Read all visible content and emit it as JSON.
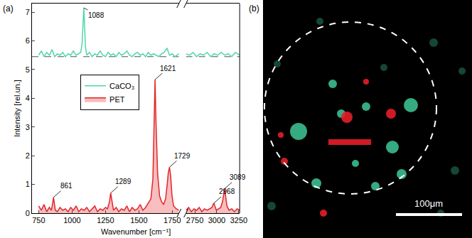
{
  "chart_data": {
    "type": "line",
    "x_label": "Wavenumber [cm⁻¹]",
    "y_label": "Intensity [rel.un.]",
    "xlim": [
      [
        700,
        1800
      ],
      [
        2650,
        3260
      ]
    ],
    "xticks": [
      [
        750,
        1000,
        1250,
        1500,
        1750
      ],
      [
        2750,
        3000,
        3250
      ]
    ],
    "ylim": [
      0,
      7.3
    ],
    "yticks": [
      0,
      1,
      2,
      3,
      4,
      5,
      6,
      7
    ],
    "grid": false,
    "legend": "left",
    "series": [
      {
        "name": "CaCO₃",
        "color": "#4fd6ad",
        "type": "line",
        "baseline": 5.45,
        "x": [
          750,
          770,
          790,
          810,
          830,
          850,
          870,
          890,
          910,
          930,
          950,
          970,
          990,
          1010,
          1030,
          1050,
          1065,
          1075,
          1082,
          1088,
          1094,
          1100,
          1110,
          1130,
          1150,
          1170,
          1190,
          1210,
          1230,
          1250,
          1270,
          1290,
          1310,
          1330,
          1350,
          1370,
          1390,
          1410,
          1430,
          1450,
          1470,
          1490,
          1510,
          1530,
          1550,
          1570,
          1590,
          1610,
          1630,
          1650,
          1670,
          1690,
          1710,
          1730,
          1750,
          1770,
          1800,
          2650,
          2690,
          2730,
          2770,
          2810,
          2850,
          2890,
          2930,
          2970,
          3010,
          3050,
          3090,
          3130,
          3170,
          3210,
          3260
        ],
        "values": [
          5.5,
          5.65,
          5.45,
          5.6,
          5.5,
          5.7,
          5.45,
          5.55,
          5.5,
          5.6,
          5.45,
          5.55,
          5.5,
          5.65,
          5.5,
          5.55,
          5.6,
          5.9,
          6.6,
          7.15,
          6.5,
          5.8,
          5.5,
          5.6,
          5.45,
          5.55,
          5.5,
          5.65,
          5.5,
          5.45,
          5.6,
          5.5,
          5.55,
          5.45,
          5.6,
          5.5,
          5.55,
          5.65,
          5.5,
          5.45,
          5.55,
          5.6,
          5.5,
          5.55,
          5.45,
          5.6,
          5.5,
          5.55,
          5.5,
          5.45,
          5.55,
          5.6,
          5.75,
          5.5,
          5.55,
          5.45,
          5.55,
          5.55,
          5.5,
          5.6,
          5.45,
          5.55,
          5.5,
          5.6,
          5.45,
          5.55,
          5.5,
          5.6,
          5.5,
          5.55,
          5.45,
          5.6,
          5.5
        ]
      },
      {
        "name": "PET",
        "color": "#e3262a",
        "type": "area",
        "x": [
          750,
          770,
          790,
          810,
          830,
          845,
          855,
          861,
          867,
          875,
          890,
          910,
          930,
          950,
          970,
          990,
          1010,
          1030,
          1050,
          1070,
          1090,
          1110,
          1130,
          1150,
          1170,
          1190,
          1210,
          1230,
          1250,
          1265,
          1280,
          1289,
          1298,
          1310,
          1330,
          1350,
          1370,
          1390,
          1410,
          1430,
          1450,
          1470,
          1490,
          1510,
          1530,
          1550,
          1570,
          1590,
          1605,
          1614,
          1621,
          1628,
          1640,
          1655,
          1670,
          1685,
          1700,
          1712,
          1720,
          1729,
          1738,
          1748,
          1760,
          1780,
          1800,
          2650,
          2680,
          2710,
          2740,
          2770,
          2800,
          2830,
          2860,
          2890,
          2920,
          2945,
          2958,
          2968,
          2978,
          2995,
          3020,
          3045,
          3065,
          3078,
          3089,
          3100,
          3115,
          3140,
          3170,
          3200,
          3230,
          3260
        ],
        "values": [
          0.25,
          0.1,
          0.3,
          0.05,
          0.2,
          0.1,
          0.35,
          0.55,
          0.35,
          0.1,
          0.05,
          0.2,
          0.1,
          0.15,
          0.05,
          0.2,
          0.1,
          0.25,
          0.05,
          0.15,
          0.1,
          0.2,
          0.05,
          0.15,
          0.25,
          0.05,
          0.15,
          0.1,
          0.2,
          0.15,
          0.4,
          0.7,
          0.4,
          0.1,
          0.2,
          0.05,
          0.15,
          0.1,
          0.25,
          0.05,
          0.2,
          0.1,
          0.15,
          0.3,
          0.1,
          0.2,
          0.35,
          0.5,
          1.2,
          3.0,
          4.65,
          3.2,
          1.4,
          0.6,
          0.4,
          0.3,
          0.5,
          1.0,
          1.4,
          1.6,
          1.3,
          0.6,
          0.25,
          0.15,
          0.1,
          0.1,
          0.2,
          0.05,
          0.15,
          0.1,
          0.2,
          0.05,
          0.15,
          0.1,
          0.15,
          0.2,
          0.3,
          0.35,
          0.25,
          0.1,
          0.15,
          0.2,
          0.4,
          0.7,
          0.85,
          0.6,
          0.25,
          0.1,
          0.15,
          0.05,
          0.15,
          0.1
        ]
      }
    ],
    "annotations": [
      {
        "text": "1088",
        "x": 1088,
        "y": 7.15
      },
      {
        "text": "861",
        "x": 861,
        "y": 0.55
      },
      {
        "text": "1289",
        "x": 1289,
        "y": 0.7
      },
      {
        "text": "1621",
        "x": 1621,
        "y": 4.65
      },
      {
        "text": "1729",
        "x": 1729,
        "y": 1.6
      },
      {
        "text": "2968",
        "x": 2968,
        "y": 0.35
      },
      {
        "text": "3089",
        "x": 3089,
        "y": 0.85
      }
    ]
  },
  "panels": {
    "a": "(a)",
    "b": "(b)"
  },
  "image": {
    "scale_bar": "100μm"
  }
}
